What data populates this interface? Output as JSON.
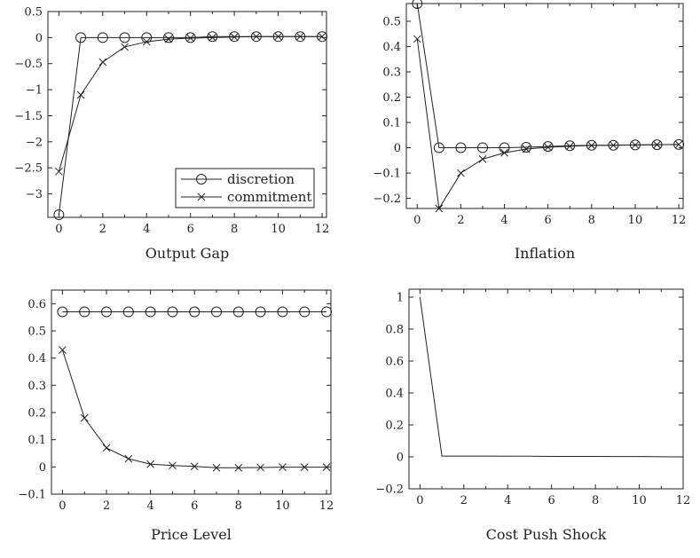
{
  "chart_data": [
    {
      "type": "line",
      "title": "Output Gap",
      "xlabel": "",
      "ylabel": "",
      "xlim": [
        -0.5,
        12.2
      ],
      "ylim": [
        -3.45,
        0.5
      ],
      "xticks": [
        0,
        2,
        4,
        6,
        8,
        10,
        12
      ],
      "yticks": [
        0.5,
        0,
        -0.5,
        -1,
        -1.5,
        -2,
        -2.5,
        -3
      ],
      "ytick_labels": [
        "0.5",
        "0",
        "−0.5",
        "−1",
        "−1.5",
        "−2",
        "−2.5",
        "−3"
      ],
      "grid": false,
      "legend": {
        "position": "bottom-right",
        "entries": [
          "discretion",
          "commitment"
        ]
      },
      "x": [
        0,
        1,
        2,
        3,
        4,
        5,
        6,
        7,
        8,
        9,
        10,
        11,
        12
      ],
      "series": [
        {
          "name": "discretion",
          "marker": "o",
          "values": [
            -3.4,
            0,
            0,
            0,
            0,
            0,
            0,
            0.02,
            0.02,
            0.02,
            0.02,
            0.02,
            0.02
          ]
        },
        {
          "name": "commitment",
          "marker": "x",
          "values": [
            -2.57,
            -1.1,
            -0.47,
            -0.18,
            -0.08,
            -0.03,
            -0.01,
            0.0,
            0.01,
            0.02,
            0.02,
            0.02,
            0.02
          ]
        }
      ]
    },
    {
      "type": "line",
      "title": "Inflation",
      "xlabel": "",
      "ylabel": "",
      "xlim": [
        -0.5,
        12.2
      ],
      "ylim": [
        -0.24,
        0.57
      ],
      "xticks": [
        0,
        2,
        4,
        6,
        8,
        10,
        12
      ],
      "yticks": [
        0.5,
        0.4,
        0.3,
        0.2,
        0.1,
        0,
        -0.1,
        -0.2
      ],
      "ytick_labels": [
        "0.5",
        "0.4",
        "0.3",
        "0.2",
        "0.1",
        "0",
        "−0.1",
        "−0.2"
      ],
      "grid": false,
      "x": [
        0,
        1,
        2,
        3,
        4,
        5,
        6,
        7,
        8,
        9,
        10,
        11,
        12
      ],
      "series": [
        {
          "name": "discretion",
          "marker": "o",
          "values": [
            0.57,
            0.0,
            0.0,
            0.0,
            0.0,
            0.002,
            0.005,
            0.008,
            0.01,
            0.01,
            0.011,
            0.012,
            0.013
          ]
        },
        {
          "name": "commitment",
          "marker": "x",
          "values": [
            0.43,
            -0.24,
            -0.1,
            -0.045,
            -0.02,
            -0.005,
            0.002,
            0.006,
            0.009,
            0.01,
            0.011,
            0.012,
            0.013
          ]
        }
      ]
    },
    {
      "type": "line",
      "title": "Price Level",
      "xlabel": "",
      "ylabel": "",
      "xlim": [
        -0.5,
        12.2
      ],
      "ylim": [
        -0.1,
        0.65
      ],
      "xticks": [
        0,
        2,
        4,
        6,
        8,
        10,
        12
      ],
      "yticks": [
        0.6,
        0.5,
        0.4,
        0.3,
        0.2,
        0.1,
        0,
        -0.1
      ],
      "ytick_labels": [
        "0.6",
        "0.5",
        "0.4",
        "0.3",
        "0.2",
        "0.1",
        "0",
        "−0.1"
      ],
      "grid": false,
      "x": [
        0,
        1,
        2,
        3,
        4,
        5,
        6,
        7,
        8,
        9,
        10,
        11,
        12
      ],
      "series": [
        {
          "name": "discretion",
          "marker": "o",
          "values": [
            0.57,
            0.57,
            0.57,
            0.57,
            0.57,
            0.57,
            0.57,
            0.57,
            0.57,
            0.57,
            0.57,
            0.57,
            0.57
          ]
        },
        {
          "name": "commitment",
          "marker": "x",
          "values": [
            0.43,
            0.18,
            0.07,
            0.03,
            0.01,
            0.005,
            0.002,
            -0.003,
            -0.003,
            -0.002,
            -0.001,
            -0.001,
            -0.001
          ]
        }
      ]
    },
    {
      "type": "line",
      "title": "Cost Push Shock",
      "xlabel": "",
      "ylabel": "",
      "xlim": [
        -0.5,
        12.0
      ],
      "ylim": [
        -0.2,
        1.05
      ],
      "xticks": [
        0,
        2,
        4,
        6,
        8,
        10,
        12
      ],
      "yticks": [
        1,
        0.8,
        0.6,
        0.4,
        0.2,
        0,
        -0.2
      ],
      "ytick_labels": [
        "1",
        "0.8",
        "0.6",
        "0.4",
        "0.2",
        "0",
        "−0.2"
      ],
      "grid": false,
      "x": [
        0,
        1,
        2,
        3,
        4,
        5,
        6,
        7,
        8,
        9,
        10,
        11,
        12
      ],
      "series": [
        {
          "marker": "none",
          "values": [
            1.0,
            0.005,
            0.005,
            0.005,
            0.004,
            0.004,
            0.003,
            0.003,
            0.003,
            0.002,
            0.002,
            0.001,
            0.0
          ]
        }
      ]
    }
  ]
}
